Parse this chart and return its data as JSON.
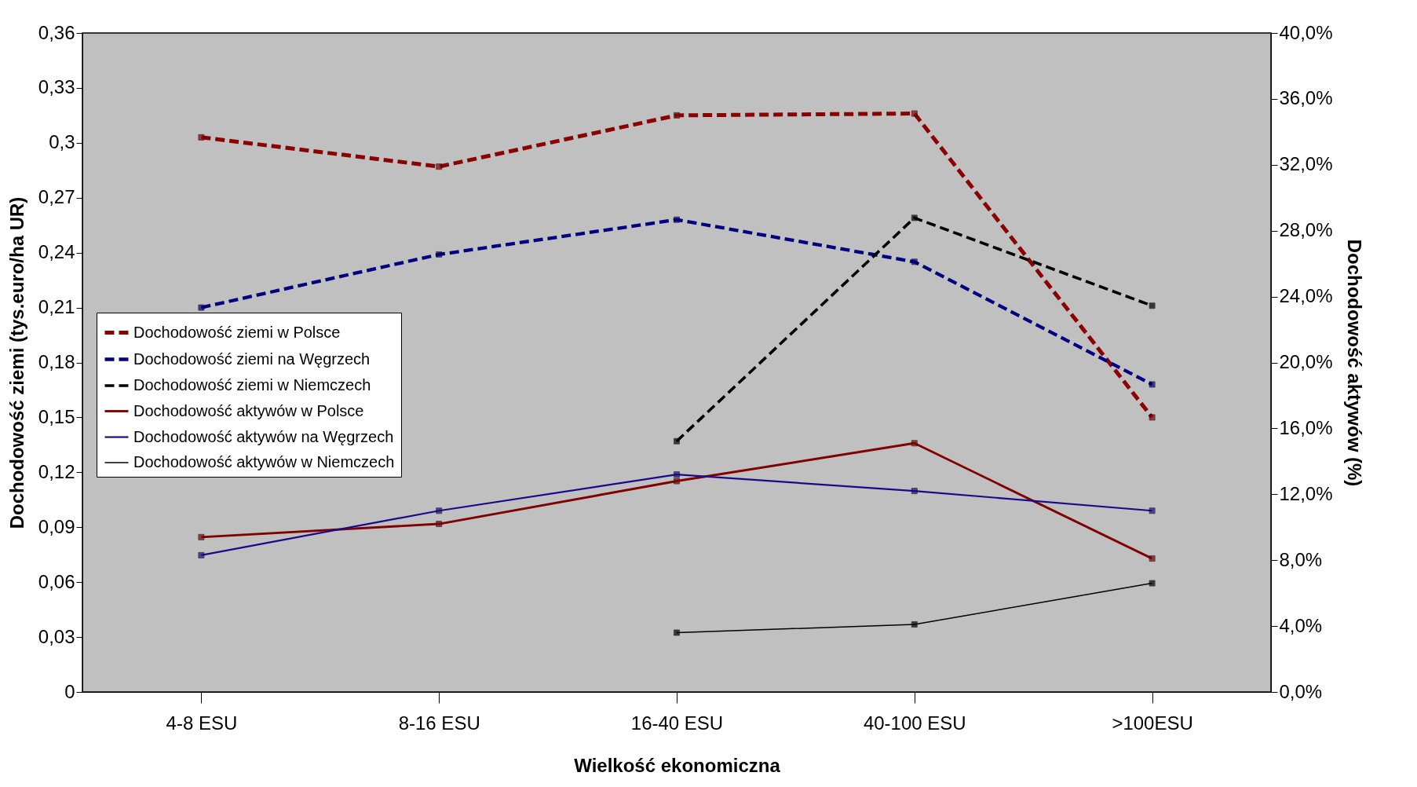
{
  "chart_data": {
    "type": "line",
    "xlabel": "Wielkość ekonomiczna",
    "ylabel": "Dochodowość ziemi (tys.euro/ha UR)",
    "y2label": "Dochodowość aktywów (%)",
    "categories": [
      "4-8 ESU",
      "8-16 ESU",
      "16-40 ESU",
      "40-100 ESU",
      ">100ESU"
    ],
    "series": [
      {
        "name": "Dochodowość ziemi w Polsce",
        "color": "#8b0000",
        "line_style": "dashed",
        "values": [
          0.303,
          0.287,
          0.315,
          0.316,
          0.15
        ]
      },
      {
        "name": "Dochodowość ziemi na Węgrzech",
        "color": "#000080",
        "line_style": "dashed",
        "values": [
          0.21,
          0.239,
          0.258,
          0.235,
          0.168
        ]
      },
      {
        "name": "Dochodowość ziemi w Niemczech",
        "color": "#000000",
        "line_style": "dashed",
        "values": [
          null,
          null,
          0.137,
          0.259,
          0.211
        ]
      },
      {
        "name": "Dochodowość aktywów w Polsce",
        "color": "#800000",
        "line_style": "solid",
        "axis": "y2",
        "values": [
          9.4,
          10.2,
          12.8,
          15.1,
          8.1
        ]
      },
      {
        "name": "Dochodowość aktywów na Węgrzech",
        "color": "#1a0a8a",
        "line_style": "solid",
        "axis": "y2",
        "values": [
          8.3,
          11.0,
          13.2,
          12.2,
          11.0
        ]
      },
      {
        "name": "Dochodowość aktywów w Niemczech",
        "color": "#000000",
        "line_style": "solid",
        "axis": "y2",
        "values": [
          null,
          null,
          3.6,
          4.1,
          6.6
        ]
      }
    ],
    "ylim": [
      0,
      0.36
    ],
    "yticks": [
      {
        "value": 0,
        "label": "0"
      },
      {
        "value": 0.03,
        "label": "0,03"
      },
      {
        "value": 0.06,
        "label": "0,06"
      },
      {
        "value": 0.09,
        "label": "0,09"
      },
      {
        "value": 0.12,
        "label": "0,12"
      },
      {
        "value": 0.15,
        "label": "0,15"
      },
      {
        "value": 0.18,
        "label": "0,18"
      },
      {
        "value": 0.21,
        "label": "0,21"
      },
      {
        "value": 0.24,
        "label": "0,24"
      },
      {
        "value": 0.27,
        "label": "0,27"
      },
      {
        "value": 0.3,
        "label": "0,3"
      },
      {
        "value": 0.33,
        "label": "0,33"
      },
      {
        "value": 0.36,
        "label": "0,36"
      }
    ],
    "y2lim": [
      0,
      40
    ],
    "y2ticks": [
      {
        "value": 0,
        "label": "0,0%"
      },
      {
        "value": 4,
        "label": "4,0%"
      },
      {
        "value": 8,
        "label": "8,0%"
      },
      {
        "value": 12,
        "label": "12,0%"
      },
      {
        "value": 16,
        "label": "16,0%"
      },
      {
        "value": 20,
        "label": "20,0%"
      },
      {
        "value": 24,
        "label": "24,0%"
      },
      {
        "value": 28,
        "label": "28,0%"
      },
      {
        "value": 32,
        "label": "32,0%"
      },
      {
        "value": 36,
        "label": "36,0%"
      },
      {
        "value": 40,
        "label": "40,0%"
      }
    ],
    "grid": false,
    "legend": "left",
    "marker": "square"
  }
}
